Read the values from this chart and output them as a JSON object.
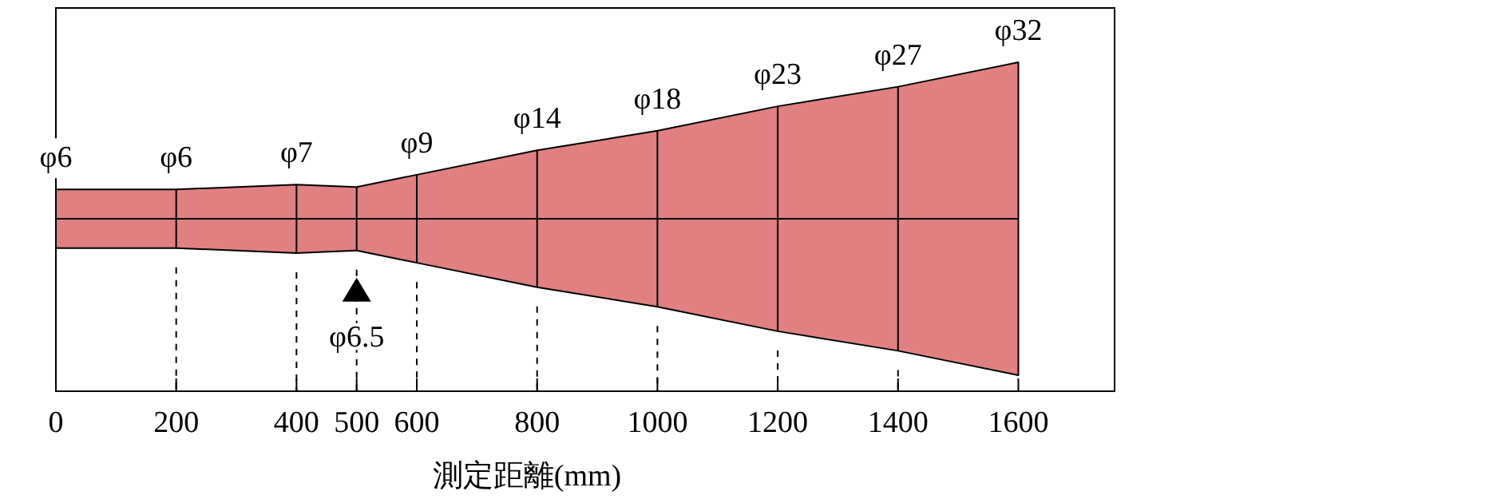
{
  "chart_data": {
    "type": "area",
    "xlabel": "測定距離(mm)",
    "x": [
      0,
      200,
      400,
      500,
      600,
      800,
      1000,
      1200,
      1400,
      1600
    ],
    "xlim": [
      0,
      1760
    ],
    "xticks": [
      0,
      200,
      400,
      500,
      600,
      800,
      1000,
      1200,
      1400,
      1600
    ],
    "series": [
      {
        "color": "#e08080",
        "values": [
          6,
          6,
          7,
          6.5,
          9,
          14,
          18,
          23,
          27,
          32
        ],
        "value_labels": [
          "φ6",
          "φ6",
          "φ7",
          null,
          "φ9",
          "φ14",
          "φ18",
          "φ23",
          "φ27",
          "φ32"
        ]
      }
    ],
    "grid": "x",
    "annotations": [
      "φ6.5"
    ]
  }
}
